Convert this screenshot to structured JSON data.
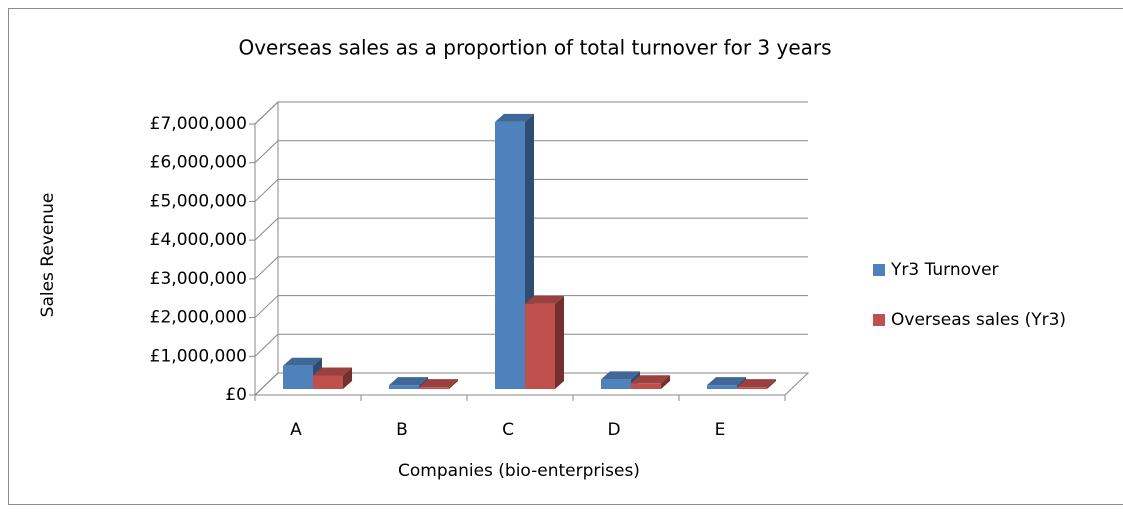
{
  "chart_data": {
    "type": "bar3d",
    "title": "Overseas sales as a proportion of total turnover for 3 years",
    "x_label": "Companies (bio-enterprises)",
    "y_label": "Sales Revenue",
    "categories": [
      "A",
      "B",
      "C",
      "D",
      "E"
    ],
    "series": [
      {
        "name": "Yr3 Turnover",
        "color": "#4f81bd",
        "values": [
          600000,
          100000,
          6900000,
          250000,
          100000
        ]
      },
      {
        "name": "Overseas sales (Yr3)",
        "color": "#c0504d",
        "values": [
          350000,
          50000,
          2200000,
          150000,
          50000
        ]
      }
    ],
    "ylim": [
      0,
      7000000
    ],
    "yticks": [
      {
        "value": 0,
        "label": "£0"
      },
      {
        "value": 1000000,
        "label": "£1,000,000"
      },
      {
        "value": 2000000,
        "label": "£2,000,000"
      },
      {
        "value": 3000000,
        "label": "£3,000,000"
      },
      {
        "value": 4000000,
        "label": "£4,000,000"
      },
      {
        "value": 5000000,
        "label": "£5,000,000"
      },
      {
        "value": 6000000,
        "label": "£6,000,000"
      },
      {
        "value": 7000000,
        "label": "£7,000,000"
      }
    ],
    "grid": true,
    "legend": "right"
  }
}
